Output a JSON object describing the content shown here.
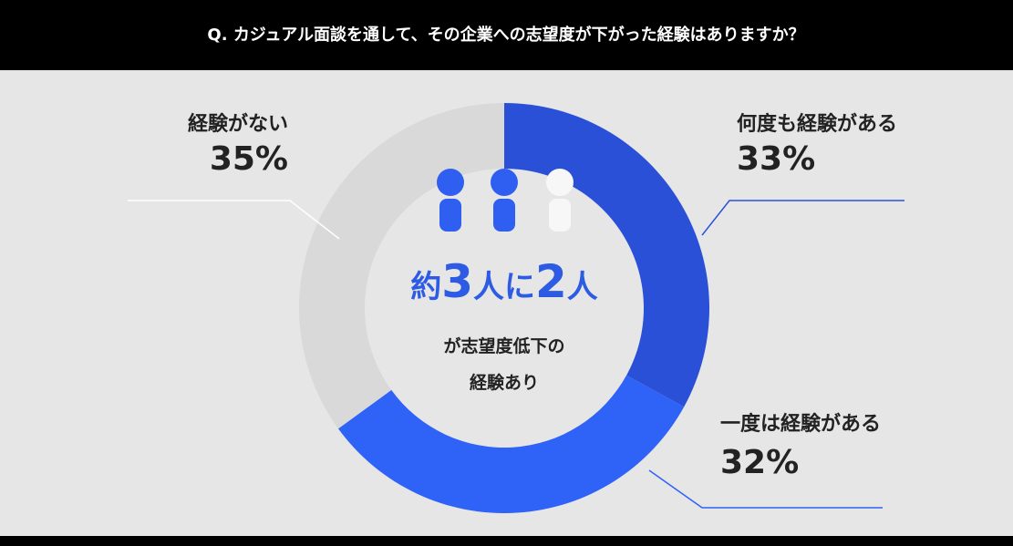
{
  "chart_data": {
    "type": "donut",
    "title": "Q. カジュアル面談を通して、その企業への志望度が下がった経験はありますか？",
    "categories": [
      "何度も経験がある",
      "一度は経験がある",
      "経験がない"
    ],
    "values": [
      33,
      32,
      35
    ],
    "value_labels": [
      "33%",
      "32%",
      "35%"
    ],
    "colors": [
      "#2a50d8",
      "#2f62f6",
      "#d9d9d9"
    ],
    "center_headline": [
      "約",
      "3",
      "人に",
      "2",
      "人"
    ],
    "center_text": [
      "が志望度低下の",
      "経験あり"
    ]
  }
}
